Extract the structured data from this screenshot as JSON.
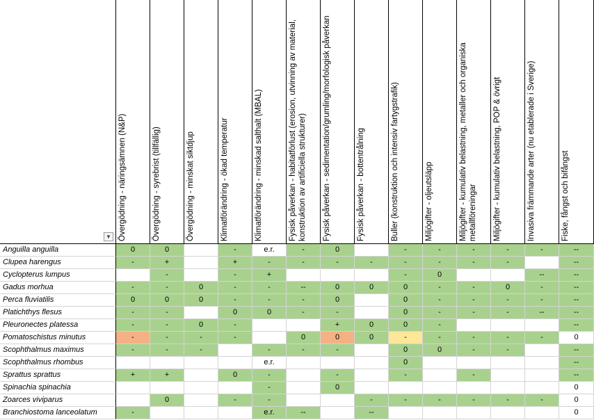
{
  "columns": [
    {
      "header": "Övergödning - näringsämnen (N&P)"
    },
    {
      "header": "Övergödning - syrebrist (tillfällig)"
    },
    {
      "header": "Övergödning - minskat siktdjup"
    },
    {
      "header": "Klimatförändring - ökad temperatur"
    },
    {
      "header": "Klimatförändring - minskad salthalt (MBAL)"
    },
    {
      "header": "Fysisk påverkan - habitatförlust (erosion, utvinning av material, konstruktion av artificiella strukturer)"
    },
    {
      "header": "Fysisk påverkan - sedimentation/grumling/morfologisk påverkan"
    },
    {
      "header": "Fysisk påverkan - bottentrålning"
    },
    {
      "header": "Buller (konstruktion och intensiv fartygstrafik)"
    },
    {
      "header": "Miljögifter - oljeutsläpp"
    },
    {
      "header": "Miljögifter - kumulativ belastning, metaller och organiska metallföreningar"
    },
    {
      "header": "Miljögifter - kumulativ belastning, POP & övrigt"
    },
    {
      "header": "Invasiva främmande arter (nu etablerade i Sverige)"
    },
    {
      "header": "Fiske, fångst och bifångst"
    }
  ],
  "filter_button_glyph": "▼",
  "rows": [
    {
      "species": "Anguilla anguilla",
      "cells": [
        [
          "0",
          "g"
        ],
        [
          "0",
          "g"
        ],
        [
          "",
          "w"
        ],
        [
          "-",
          "g"
        ],
        [
          "e.r.",
          "w"
        ],
        [
          "-",
          "g"
        ],
        [
          "0",
          "g"
        ],
        [
          "",
          "w"
        ],
        [
          "-",
          "g"
        ],
        [
          "-",
          "g"
        ],
        [
          "-",
          "g"
        ],
        [
          "-",
          "g"
        ],
        [
          "-",
          "g"
        ],
        [
          "--",
          "g"
        ]
      ]
    },
    {
      "species": "Clupea harengus",
      "cells": [
        [
          "-",
          "g"
        ],
        [
          "+",
          "g"
        ],
        [
          "",
          "w"
        ],
        [
          "+",
          "g"
        ],
        [
          "-",
          "g"
        ],
        [
          "-",
          "g"
        ],
        [
          "-",
          "g"
        ],
        [
          "-",
          "g"
        ],
        [
          "-",
          "g"
        ],
        [
          "-",
          "g"
        ],
        [
          "-",
          "g"
        ],
        [
          "-",
          "g"
        ],
        [
          "",
          "w"
        ],
        [
          "--",
          "g"
        ]
      ]
    },
    {
      "species": "Cyclopterus lumpus",
      "cells": [
        [
          "",
          "w"
        ],
        [
          "-",
          "g"
        ],
        [
          "",
          "w"
        ],
        [
          "-",
          "g"
        ],
        [
          "+",
          "g"
        ],
        [
          "",
          "w"
        ],
        [
          "",
          "w"
        ],
        [
          "",
          "w"
        ],
        [
          "-",
          "g"
        ],
        [
          "0",
          "g"
        ],
        [
          "",
          "w"
        ],
        [
          "",
          "w"
        ],
        [
          "--",
          "g"
        ],
        [
          "--",
          "g"
        ]
      ]
    },
    {
      "species": "Gadus morhua",
      "cells": [
        [
          "-",
          "g"
        ],
        [
          "-",
          "g"
        ],
        [
          "0",
          "g"
        ],
        [
          "-",
          "g"
        ],
        [
          "-",
          "g"
        ],
        [
          "--",
          "g"
        ],
        [
          "0",
          "g"
        ],
        [
          "0",
          "g"
        ],
        [
          "0",
          "g"
        ],
        [
          "-",
          "g"
        ],
        [
          "-",
          "g"
        ],
        [
          "0",
          "g"
        ],
        [
          "-",
          "g"
        ],
        [
          "--",
          "g"
        ]
      ]
    },
    {
      "species": "Perca fluviatilis",
      "cells": [
        [
          "0",
          "g"
        ],
        [
          "0",
          "g"
        ],
        [
          "0",
          "g"
        ],
        [
          "-",
          "g"
        ],
        [
          "-",
          "g"
        ],
        [
          "-",
          "g"
        ],
        [
          "0",
          "g"
        ],
        [
          "",
          "w"
        ],
        [
          "0",
          "g"
        ],
        [
          "-",
          "g"
        ],
        [
          "-",
          "g"
        ],
        [
          "-",
          "g"
        ],
        [
          "-",
          "g"
        ],
        [
          "--",
          "g"
        ]
      ]
    },
    {
      "species": "Platichthys flesus",
      "cells": [
        [
          "-",
          "g"
        ],
        [
          "-",
          "g"
        ],
        [
          "",
          "w"
        ],
        [
          "0",
          "g"
        ],
        [
          "0",
          "g"
        ],
        [
          "-",
          "g"
        ],
        [
          "-",
          "g"
        ],
        [
          "",
          "w"
        ],
        [
          "0",
          "g"
        ],
        [
          "-",
          "g"
        ],
        [
          "-",
          "g"
        ],
        [
          "-",
          "g"
        ],
        [
          "--",
          "g"
        ],
        [
          "--",
          "g"
        ]
      ]
    },
    {
      "species": "Pleuronectes platessa",
      "cells": [
        [
          "-",
          "g"
        ],
        [
          "-",
          "g"
        ],
        [
          "0",
          "g"
        ],
        [
          "-",
          "g"
        ],
        [
          "",
          "w"
        ],
        [
          "",
          "w"
        ],
        [
          "+",
          "g"
        ],
        [
          "0",
          "g"
        ],
        [
          "0",
          "g"
        ],
        [
          "-",
          "g"
        ],
        [
          "",
          "w"
        ],
        [
          "",
          "w"
        ],
        [
          "",
          "w"
        ],
        [
          "--",
          "g"
        ]
      ]
    },
    {
      "species": "Pomatoschistus minutus",
      "cells": [
        [
          "-",
          "o"
        ],
        [
          "-",
          "g"
        ],
        [
          "-",
          "g"
        ],
        [
          "-",
          "g"
        ],
        [
          "",
          "w"
        ],
        [
          "0",
          "g"
        ],
        [
          "0",
          "o"
        ],
        [
          "0",
          "g"
        ],
        [
          "-",
          "y"
        ],
        [
          "-",
          "g"
        ],
        [
          "-",
          "g"
        ],
        [
          "-",
          "g"
        ],
        [
          "-",
          "g"
        ],
        [
          "0",
          "w"
        ]
      ]
    },
    {
      "species": "Scophthalmus maximus",
      "cells": [
        [
          "-",
          "g"
        ],
        [
          "-",
          "g"
        ],
        [
          "-",
          "g"
        ],
        [
          "",
          "w"
        ],
        [
          "-",
          "g"
        ],
        [
          "-",
          "g"
        ],
        [
          "-",
          "g"
        ],
        [
          "",
          "w"
        ],
        [
          "0",
          "g"
        ],
        [
          "0",
          "g"
        ],
        [
          "-",
          "g"
        ],
        [
          "-",
          "g"
        ],
        [
          "",
          "w"
        ],
        [
          "--",
          "g"
        ]
      ]
    },
    {
      "species": "Scophthalmus rhombus",
      "cells": [
        [
          "",
          "w"
        ],
        [
          "",
          "w"
        ],
        [
          "",
          "w"
        ],
        [
          "",
          "w"
        ],
        [
          "e.r.",
          "w"
        ],
        [
          "",
          "w"
        ],
        [
          "",
          "w"
        ],
        [
          "",
          "w"
        ],
        [
          "0",
          "g"
        ],
        [
          "",
          "w"
        ],
        [
          "",
          "w"
        ],
        [
          "",
          "w"
        ],
        [
          "",
          "w"
        ],
        [
          "--",
          "g"
        ]
      ]
    },
    {
      "species": "Sprattus sprattus",
      "cells": [
        [
          "+",
          "g"
        ],
        [
          "+",
          "g"
        ],
        [
          "",
          "w"
        ],
        [
          "0",
          "g"
        ],
        [
          "-",
          "g"
        ],
        [
          "",
          "w"
        ],
        [
          "-",
          "g"
        ],
        [
          "",
          "w"
        ],
        [
          "-",
          "g"
        ],
        [
          "",
          "w"
        ],
        [
          "-",
          "g"
        ],
        [
          "",
          "w"
        ],
        [
          "",
          "w"
        ],
        [
          "--",
          "g"
        ]
      ]
    },
    {
      "species": "Spinachia spinachia",
      "cells": [
        [
          "",
          "w"
        ],
        [
          "",
          "w"
        ],
        [
          "",
          "w"
        ],
        [
          "",
          "w"
        ],
        [
          "-",
          "g"
        ],
        [
          "",
          "w"
        ],
        [
          "0",
          "g"
        ],
        [
          "",
          "w"
        ],
        [
          "",
          "w"
        ],
        [
          "",
          "w"
        ],
        [
          "",
          "w"
        ],
        [
          "",
          "w"
        ],
        [
          "",
          "w"
        ],
        [
          "0",
          "w"
        ]
      ]
    },
    {
      "species": "Zoarces viviparus",
      "cells": [
        [
          "",
          "w"
        ],
        [
          "0",
          "g"
        ],
        [
          "",
          "w"
        ],
        [
          "-",
          "g"
        ],
        [
          "-",
          "g"
        ],
        [
          "",
          "w"
        ],
        [
          "",
          "w"
        ],
        [
          "-",
          "g"
        ],
        [
          "-",
          "g"
        ],
        [
          "-",
          "g"
        ],
        [
          "-",
          "g"
        ],
        [
          "-",
          "g"
        ],
        [
          "-",
          "g"
        ],
        [
          "0",
          "w"
        ]
      ]
    },
    {
      "species": "Branchiostoma lanceolatum",
      "cells": [
        [
          "-",
          "g"
        ],
        [
          "",
          "w"
        ],
        [
          "",
          "w"
        ],
        [
          "",
          "w"
        ],
        [
          "e.r.",
          "g"
        ],
        [
          "--",
          "g"
        ],
        [
          "",
          "w"
        ],
        [
          "--",
          "g"
        ],
        [
          "",
          "w"
        ],
        [
          "",
          "w"
        ],
        [
          "",
          "w"
        ],
        [
          "",
          "w"
        ],
        [
          "",
          "w"
        ],
        [
          "0",
          "w"
        ]
      ]
    }
  ]
}
